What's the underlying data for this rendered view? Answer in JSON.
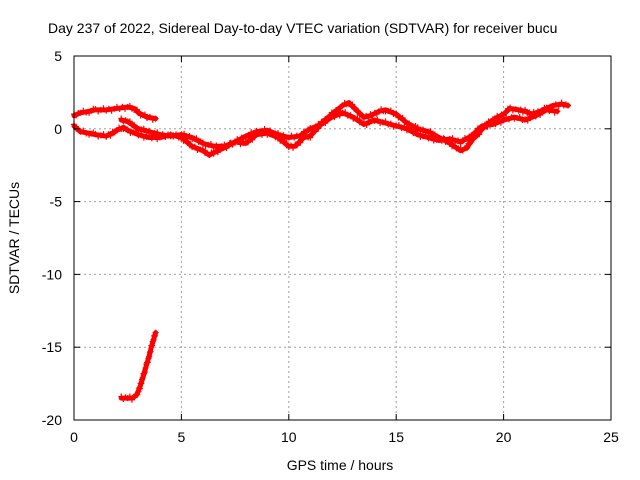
{
  "chart_data": {
    "type": "scatter",
    "title": "Day 237 of 2022, Sidereal Day-to-day VTEC variation (SDTVAR) for receiver bucu",
    "xlabel": "GPS time / hours",
    "ylabel": "SDTVAR / TECUs",
    "xlim": [
      0,
      25
    ],
    "ylim": [
      -20,
      5
    ],
    "xticks": [
      "0",
      "5",
      "10",
      "15",
      "20",
      "25"
    ],
    "yticks": [
      "5",
      "0",
      "-5",
      "-10",
      "-15",
      "-20"
    ],
    "grid": true,
    "series_color": "#ff0000",
    "series": [
      {
        "name": "upper-track",
        "points": [
          [
            0.0,
            0.9
          ],
          [
            0.3,
            1.1
          ],
          [
            0.7,
            1.2
          ],
          [
            1.0,
            1.3
          ],
          [
            1.5,
            1.3
          ],
          [
            2.0,
            1.4
          ],
          [
            2.5,
            1.5
          ],
          [
            2.8,
            1.4
          ],
          [
            3.0,
            1.1
          ],
          [
            3.4,
            0.8
          ],
          [
            3.8,
            0.7
          ]
        ]
      },
      {
        "name": "main-track",
        "points": [
          [
            0.0,
            0.2
          ],
          [
            0.3,
            -0.2
          ],
          [
            0.7,
            -0.3
          ],
          [
            1.0,
            -0.4
          ],
          [
            1.5,
            -0.5
          ],
          [
            1.8,
            -0.3
          ],
          [
            2.0,
            -0.1
          ],
          [
            2.3,
            0.1
          ],
          [
            2.5,
            -0.1
          ],
          [
            3.0,
            -0.4
          ],
          [
            3.5,
            -0.6
          ],
          [
            4.0,
            -0.6
          ],
          [
            4.5,
            -0.4
          ],
          [
            5.0,
            -0.6
          ],
          [
            5.5,
            -1.2
          ],
          [
            6.0,
            -1.5
          ],
          [
            6.3,
            -1.8
          ],
          [
            6.7,
            -1.5
          ],
          [
            7.0,
            -1.3
          ],
          [
            7.5,
            -0.9
          ],
          [
            8.0,
            -1.0
          ],
          [
            8.5,
            -0.4
          ],
          [
            9.0,
            -0.3
          ],
          [
            9.5,
            -0.6
          ],
          [
            10.0,
            -1.2
          ],
          [
            10.3,
            -1.2
          ],
          [
            10.7,
            -0.6
          ],
          [
            11.0,
            -0.5
          ],
          [
            11.3,
            0.0
          ],
          [
            11.6,
            0.5
          ],
          [
            12.0,
            1.0
          ],
          [
            12.5,
            1.6
          ],
          [
            12.8,
            1.8
          ],
          [
            13.2,
            1.2
          ],
          [
            13.5,
            0.8
          ],
          [
            13.8,
            0.9
          ],
          [
            14.2,
            1.2
          ],
          [
            14.5,
            1.3
          ],
          [
            15.0,
            1.0
          ],
          [
            15.5,
            0.4
          ],
          [
            16.0,
            0.0
          ],
          [
            16.5,
            -0.2
          ],
          [
            17.0,
            -0.6
          ],
          [
            17.5,
            -1.0
          ],
          [
            17.8,
            -1.3
          ],
          [
            18.0,
            -1.5
          ],
          [
            18.3,
            -1.3
          ],
          [
            18.5,
            -0.8
          ],
          [
            18.8,
            -0.4
          ],
          [
            19.0,
            0.0
          ],
          [
            19.3,
            0.4
          ],
          [
            19.6,
            0.7
          ],
          [
            20.0,
            1.0
          ],
          [
            20.3,
            1.4
          ],
          [
            20.7,
            1.3
          ],
          [
            21.0,
            1.2
          ],
          [
            21.3,
            1.0
          ],
          [
            21.7,
            1.2
          ],
          [
            22.0,
            1.4
          ],
          [
            22.3,
            1.6
          ],
          [
            22.7,
            1.7
          ],
          [
            23.0,
            1.6
          ]
        ]
      },
      {
        "name": "secondary-track",
        "points": [
          [
            2.2,
            0.6
          ],
          [
            2.5,
            0.5
          ],
          [
            3.0,
            0.0
          ],
          [
            3.5,
            -0.2
          ],
          [
            4.0,
            -0.4
          ],
          [
            4.5,
            -0.5
          ],
          [
            5.0,
            -0.4
          ],
          [
            5.5,
            -0.6
          ],
          [
            6.0,
            -1.0
          ],
          [
            6.5,
            -1.2
          ],
          [
            7.0,
            -1.2
          ],
          [
            7.5,
            -0.9
          ],
          [
            8.0,
            -0.5
          ],
          [
            8.5,
            -0.2
          ],
          [
            9.0,
            -0.1
          ],
          [
            9.5,
            -0.4
          ],
          [
            10.0,
            -0.6
          ],
          [
            10.5,
            -0.5
          ],
          [
            11.0,
            0.0
          ],
          [
            11.5,
            0.3
          ],
          [
            12.0,
            0.8
          ],
          [
            12.5,
            1.1
          ],
          [
            13.0,
            0.8
          ],
          [
            13.5,
            0.3
          ],
          [
            14.0,
            0.6
          ],
          [
            14.5,
            0.4
          ],
          [
            15.0,
            0.2
          ],
          [
            15.5,
            0.0
          ],
          [
            16.0,
            -0.4
          ],
          [
            16.5,
            -0.6
          ],
          [
            17.0,
            -0.8
          ],
          [
            17.5,
            -0.7
          ],
          [
            18.0,
            -0.9
          ],
          [
            18.5,
            -0.5
          ],
          [
            19.0,
            0.2
          ],
          [
            19.5,
            0.3
          ],
          [
            20.0,
            0.6
          ],
          [
            20.5,
            0.8
          ],
          [
            21.0,
            0.6
          ],
          [
            21.5,
            0.9
          ],
          [
            22.0,
            1.3
          ],
          [
            22.5,
            1.2
          ]
        ]
      },
      {
        "name": "low-track",
        "points": [
          [
            2.2,
            -18.5
          ],
          [
            2.5,
            -18.5
          ],
          [
            2.7,
            -18.5
          ],
          [
            2.9,
            -18.3
          ],
          [
            3.0,
            -18.0
          ],
          [
            3.1,
            -17.6
          ],
          [
            3.2,
            -17.1
          ],
          [
            3.3,
            -16.6
          ],
          [
            3.4,
            -16.1
          ],
          [
            3.5,
            -15.6
          ],
          [
            3.6,
            -15.0
          ],
          [
            3.7,
            -14.5
          ],
          [
            3.8,
            -14.0
          ]
        ]
      }
    ]
  }
}
